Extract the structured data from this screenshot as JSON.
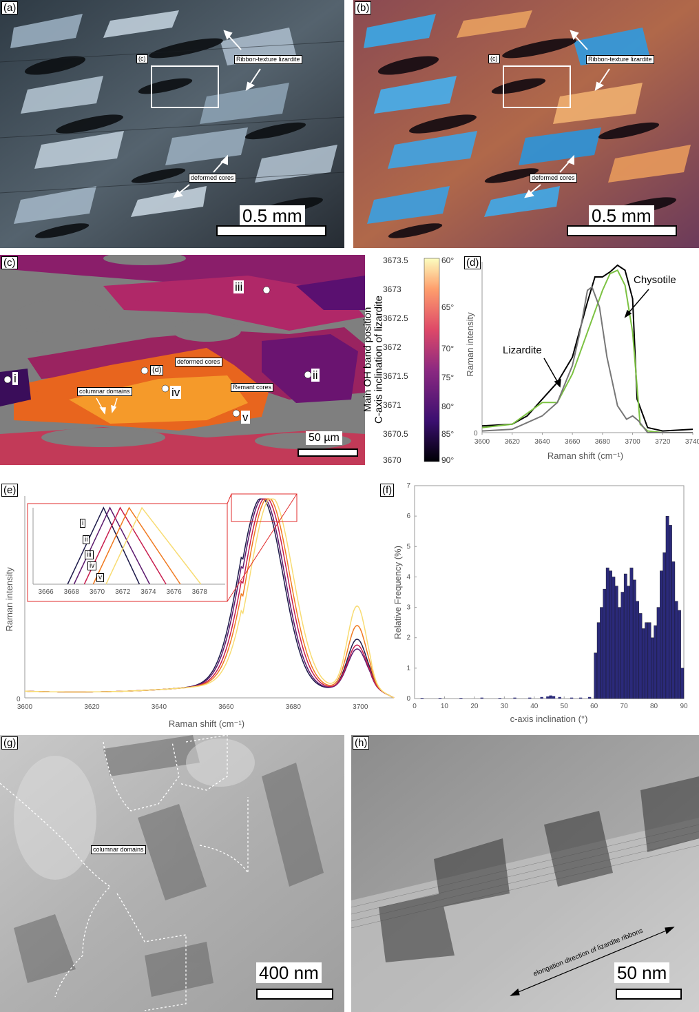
{
  "panels": {
    "a": {
      "label": "(a)",
      "inset_tag": "(c)",
      "ann_ribbon": "Ribbon-texture lizardite",
      "ann_cores": "deformed cores",
      "scale": "0.5 mm"
    },
    "b": {
      "label": "(b)",
      "inset_tag": "(c)",
      "ann_ribbon": "Ribbon-texture lizardite",
      "ann_cores": "deformed cores",
      "scale": "0.5 mm"
    },
    "c": {
      "label": "(c)",
      "points": [
        "i",
        "ii",
        "iii",
        "iv",
        "v"
      ],
      "point_d": "(d)",
      "ann_deformed": "deformed cores",
      "ann_columnar": "columnar domains",
      "ann_remant": "Remant cores",
      "scale": "50 µm",
      "colorbar": {
        "left_ticks": [
          "3673.5",
          "3673",
          "3672.5",
          "3672",
          "3671.5",
          "3671",
          "3670.5",
          "3670"
        ],
        "right_ticks": [
          "60°",
          "65°",
          "70°",
          "75°",
          "80°",
          "85°",
          "90°"
        ],
        "left_title": "Main OH band position",
        "right_title": "C-axis inclination of lizardite"
      }
    },
    "d": {
      "label": "(d)",
      "ylabel": "Raman intensity",
      "xlabel": "Raman shift (cm⁻¹)",
      "ann_liz": "Lizardite",
      "ann_chry": "Chysotile",
      "y0": "0"
    },
    "e": {
      "label": "(e)",
      "ylabel": "Raman intensity",
      "xlabel": "Raman shift (cm⁻¹)",
      "y0": "0",
      "inset_points": [
        "i",
        "ii",
        "iii",
        "iv",
        "v"
      ]
    },
    "f": {
      "label": "(f)",
      "ylabel": "Relative Frequency (%)",
      "xlabel": "c-axis inclination (°)"
    },
    "g": {
      "label": "(g)",
      "ann": "columnar domains",
      "scale": "400 nm"
    },
    "h": {
      "label": "(h)",
      "ann": "elongation direction of lizardite ribbons",
      "scale": "50 nm"
    }
  },
  "chart_data": [
    {
      "type": "line",
      "panel": "d",
      "xlim": [
        3600,
        3740
      ],
      "xticks": [
        3600,
        3620,
        3640,
        3660,
        3680,
        3700,
        3720,
        3740
      ],
      "series": [
        {
          "color": "#000000",
          "x": [
            3600,
            3620,
            3630,
            3640,
            3650,
            3660,
            3670,
            3675,
            3680,
            3685,
            3690,
            3695,
            3700,
            3703,
            3710,
            3720,
            3740
          ],
          "y": [
            0.04,
            0.05,
            0.1,
            0.2,
            0.3,
            0.45,
            0.78,
            0.93,
            0.93,
            0.96,
            1.0,
            0.97,
            0.8,
            0.2,
            0.03,
            0.01,
            0.02
          ]
        },
        {
          "color": "#7cc242",
          "x": [
            3600,
            3620,
            3640,
            3650,
            3660,
            3670,
            3680,
            3685,
            3690,
            3695,
            3700,
            3705,
            3710,
            3720,
            3740
          ],
          "y": [
            0.03,
            0.05,
            0.18,
            0.18,
            0.35,
            0.6,
            0.85,
            0.95,
            0.97,
            0.88,
            0.6,
            0.05,
            0.01,
            0.0,
            0.0
          ]
        },
        {
          "color": "#777777",
          "x": [
            3600,
            3620,
            3640,
            3650,
            3660,
            3665,
            3670,
            3673,
            3678,
            3683,
            3690,
            3696,
            3700,
            3704,
            3710,
            3740
          ],
          "y": [
            0.01,
            0.02,
            0.1,
            0.18,
            0.4,
            0.6,
            0.85,
            0.87,
            0.75,
            0.45,
            0.16,
            0.08,
            0.1,
            0.07,
            0.0,
            0.0
          ]
        }
      ]
    },
    {
      "type": "line",
      "panel": "e",
      "xlim": [
        3600,
        3710
      ],
      "xticks": [
        3600,
        3620,
        3640,
        3660,
        3680,
        3700
      ],
      "inset_xticks": [
        3666,
        3668,
        3670,
        3672,
        3674,
        3676,
        3678
      ],
      "series": [
        {
          "name": "i",
          "color": "#1e1b4b",
          "peak": 3670.5,
          "shoulder": 0.25
        },
        {
          "name": "ii",
          "color": "#5c1a6e",
          "peak": 3671.0,
          "shoulder": 0.2
        },
        {
          "name": "iii",
          "color": "#c81e4e",
          "peak": 3671.8,
          "shoulder": 0.22
        },
        {
          "name": "iv",
          "color": "#f07a20",
          "peak": 3672.5,
          "shoulder": 0.32
        },
        {
          "name": "v",
          "color": "#f8dc73",
          "peak": 3673.5,
          "shoulder": 0.42
        }
      ]
    },
    {
      "type": "bar",
      "panel": "f",
      "xlim": [
        0,
        90
      ],
      "ylim": [
        0,
        7
      ],
      "xticks": [
        0,
        10,
        20,
        30,
        40,
        50,
        60,
        70,
        80,
        90
      ],
      "yticks": [
        0,
        1,
        2,
        3,
        4,
        5,
        6,
        7
      ],
      "x": [
        60,
        61,
        62,
        63,
        64,
        65,
        66,
        67,
        68,
        69,
        70,
        71,
        72,
        73,
        74,
        75,
        76,
        77,
        78,
        79,
        80,
        81,
        82,
        83,
        84,
        85,
        86,
        87,
        88,
        89
      ],
      "values": [
        1.5,
        2.5,
        3.0,
        3.6,
        4.3,
        4.2,
        4.0,
        3.7,
        3.0,
        3.5,
        4.1,
        3.7,
        4.3,
        3.9,
        3.2,
        2.8,
        2.3,
        2.5,
        2.5,
        2.0,
        2.4,
        3.0,
        4.2,
        4.8,
        6.0,
        5.7,
        4.5,
        3.2,
        2.9,
        1.0
      ],
      "low_x": [
        2,
        8,
        15,
        22,
        28,
        33,
        38,
        42,
        44,
        45,
        46,
        48,
        52,
        55,
        58
      ],
      "low_values": [
        0.02,
        0.02,
        0.02,
        0.03,
        0.02,
        0.03,
        0.03,
        0.05,
        0.07,
        0.1,
        0.08,
        0.05,
        0.03,
        0.03,
        0.05
      ]
    }
  ]
}
